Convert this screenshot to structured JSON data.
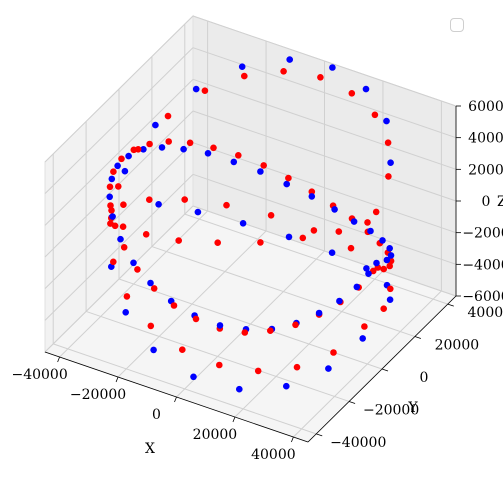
{
  "chart_data": {
    "type": "scatter3d",
    "title": "",
    "xlabel": "X",
    "ylabel": "Y",
    "zlabel": "Z",
    "xlim": [
      -45000,
      45000
    ],
    "ylim": [
      -45000,
      45000
    ],
    "zlim": [
      -6000,
      6000
    ],
    "xticks": [
      -40000,
      -20000,
      0,
      20000,
      40000
    ],
    "xtick_labels": [
      "−40000",
      "−20000",
      "0",
      "20000",
      "40000"
    ],
    "yticks": [
      -40000,
      -20000,
      0,
      20000,
      40000
    ],
    "ytick_labels": [
      "−40000",
      "−20000",
      "0",
      "20000",
      "40000"
    ],
    "zticks": [
      -6000,
      -4000,
      -2000,
      0,
      2000,
      4000,
      6000
    ],
    "ztick_labels": [
      "−6000",
      "−4000",
      "−2000",
      "0",
      "2000",
      "4000",
      "6000"
    ],
    "legend": {
      "placement": "top-right",
      "entries": []
    },
    "grid": true,
    "series": [
      {
        "color": "#ff0000",
        "description": "ring of radius ~42000 in XY plane; red markers",
        "points": [
          [
            42000,
            0,
            0
          ],
          [
            41300,
            7600,
            -700
          ],
          [
            39200,
            15000,
            -1400
          ],
          [
            35800,
            21900,
            -2000
          ],
          [
            31200,
            28100,
            -2400
          ],
          [
            25500,
            33300,
            -2700
          ],
          [
            19100,
            37400,
            -2800
          ],
          [
            12100,
            40200,
            -2700
          ],
          [
            4800,
            41700,
            -2500
          ],
          [
            -2600,
            41900,
            -2100
          ],
          [
            -10000,
            40800,
            -1600
          ],
          [
            -17100,
            38400,
            -1000
          ],
          [
            -23700,
            34700,
            -400
          ],
          [
            -29500,
            29900,
            200
          ],
          [
            -34300,
            24200,
            800
          ],
          [
            -38000,
            17800,
            1300
          ],
          [
            -40600,
            10800,
            1700
          ],
          [
            -41900,
            3500,
            2000
          ],
          [
            -41900,
            -4000,
            2200
          ],
          [
            -40600,
            -11200,
            2200
          ],
          [
            -38000,
            -17900,
            2100
          ],
          [
            -34300,
            -24200,
            1800
          ],
          [
            -29500,
            -29900,
            1400
          ],
          [
            -23700,
            -34700,
            900
          ],
          [
            -17100,
            -38400,
            300
          ],
          [
            -10000,
            -40800,
            -200
          ],
          [
            -2600,
            -41900,
            -700
          ],
          [
            4800,
            -41700,
            -1100
          ],
          [
            12100,
            -40200,
            -1400
          ],
          [
            19100,
            -37400,
            -1500
          ],
          [
            25500,
            -33300,
            -1400
          ],
          [
            31200,
            -28100,
            -1200
          ],
          [
            35800,
            -21900,
            -900
          ],
          [
            39200,
            -15000,
            -600
          ],
          [
            41300,
            -7600,
            -300
          ],
          [
            41000,
            3600,
            3300
          ],
          [
            37800,
            16700,
            4000
          ],
          [
            31500,
            27700,
            4600
          ],
          [
            22600,
            35500,
            5000
          ],
          [
            12000,
            40300,
            5200
          ],
          [
            300,
            42000,
            5300
          ],
          [
            -11400,
            40400,
            5100
          ],
          [
            -22200,
            35700,
            4600
          ],
          [
            -31300,
            27900,
            3900
          ],
          [
            -37800,
            17000,
            3000
          ],
          [
            -41300,
            5100,
            1900
          ],
          [
            -41300,
            -7000,
            800
          ],
          [
            -37800,
            -18000,
            -200
          ],
          [
            -31300,
            -27800,
            -1200
          ],
          [
            -22200,
            -35700,
            -2000
          ],
          [
            -11400,
            -40400,
            -2700
          ],
          [
            300,
            -42000,
            -3300
          ],
          [
            12000,
            -40300,
            -3700
          ],
          [
            22600,
            -35500,
            -3900
          ],
          [
            31500,
            -27700,
            -3900
          ],
          [
            37800,
            -16700,
            -3700
          ],
          [
            41000,
            -3600,
            -3200
          ],
          [
            40500,
            9000,
            -3400
          ],
          [
            34600,
            23500,
            -4000
          ],
          [
            24300,
            34200,
            -4400
          ],
          [
            11700,
            40300,
            -4600
          ],
          [
            -1900,
            41900,
            -4500
          ],
          [
            -15000,
            39200,
            -4100
          ],
          [
            -26500,
            32500,
            -3500
          ],
          [
            -35300,
            22700,
            -2700
          ],
          [
            -40600,
            10600,
            -1800
          ],
          [
            -41800,
            -3000,
            -800
          ],
          [
            -39300,
            -14700,
            200
          ],
          [
            -33300,
            -25500,
            1200
          ],
          [
            -24400,
            -34100,
            2100
          ],
          [
            -13300,
            -39800,
            2900
          ],
          [
            -1000,
            -41900,
            3500
          ],
          [
            11500,
            -40400,
            4000
          ],
          [
            23100,
            -35000,
            4200
          ],
          [
            32700,
            -26300,
            4200
          ],
          [
            39000,
            -15600,
            3900
          ],
          [
            41900,
            -3300,
            3400
          ]
        ]
      },
      {
        "color": "#0000ff",
        "description": "ring of radius ~42000 in XY plane; blue markers",
        "points": [
          [
            42000,
            2000,
            300
          ],
          [
            40600,
            10800,
            -500
          ],
          [
            37600,
            18600,
            -1200
          ],
          [
            33000,
            26000,
            -1800
          ],
          [
            27100,
            32100,
            -2300
          ],
          [
            20400,
            36700,
            -2600
          ],
          [
            13000,
            39900,
            -2800
          ],
          [
            5300,
            41700,
            -2700
          ],
          [
            -2600,
            41900,
            -2400
          ],
          [
            -10500,
            40700,
            -2000
          ],
          [
            -18000,
            38000,
            -1400
          ],
          [
            -24800,
            33900,
            -800
          ],
          [
            -30700,
            28700,
            -100
          ],
          [
            -35500,
            22400,
            500
          ],
          [
            -39000,
            15500,
            1100
          ],
          [
            -41200,
            8100,
            1600
          ],
          [
            -42000,
            500,
            1900
          ],
          [
            -41500,
            -7100,
            2100
          ],
          [
            -39600,
            -14000,
            2100
          ],
          [
            -36300,
            -21100,
            1900
          ],
          [
            -31700,
            -27500,
            1600
          ],
          [
            -25900,
            -33000,
            1100
          ],
          [
            -19000,
            -37400,
            500
          ],
          [
            -11500,
            -40400,
            0
          ],
          [
            -3600,
            -41800,
            -500
          ],
          [
            4400,
            -41800,
            -900
          ],
          [
            12200,
            -40200,
            -1200
          ],
          [
            19400,
            -37200,
            -1300
          ],
          [
            25900,
            -33000,
            -1300
          ],
          [
            31400,
            -27900,
            -1100
          ],
          [
            35800,
            -21900,
            -800
          ],
          [
            39100,
            -15400,
            -500
          ],
          [
            41100,
            -8400,
            -200
          ],
          [
            41900,
            -2700,
            100
          ],
          [
            38500,
            16800,
            4900
          ],
          [
            30000,
            29400,
            5700
          ],
          [
            18200,
            37900,
            6100
          ],
          [
            4500,
            41800,
            6200
          ],
          [
            -9600,
            40900,
            5900
          ],
          [
            -22700,
            35300,
            5200
          ],
          [
            -33100,
            25800,
            4100
          ],
          [
            -39900,
            13100,
            2700
          ],
          [
            -41900,
            -1900,
            1200
          ],
          [
            -39500,
            -14300,
            -300
          ],
          [
            -33000,
            -26000,
            -1800
          ],
          [
            -22900,
            -35200,
            -3100
          ],
          [
            -10200,
            -40800,
            -4100
          ],
          [
            4000,
            -41800,
            -4800
          ],
          [
            17600,
            -38100,
            -5100
          ],
          [
            29200,
            -30100,
            -5000
          ],
          [
            37400,
            -19100,
            -4500
          ],
          [
            41600,
            -5700,
            -3700
          ],
          [
            39000,
            15600,
            -3600
          ],
          [
            30400,
            29000,
            -4600
          ],
          [
            18400,
            37800,
            -5200
          ],
          [
            4400,
            41800,
            -5500
          ],
          [
            -9800,
            40800,
            -5300
          ],
          [
            -22500,
            35500,
            -4700
          ],
          [
            -32800,
            26300,
            -3700
          ],
          [
            -39500,
            14300,
            -2400
          ]
        ]
      }
    ]
  }
}
